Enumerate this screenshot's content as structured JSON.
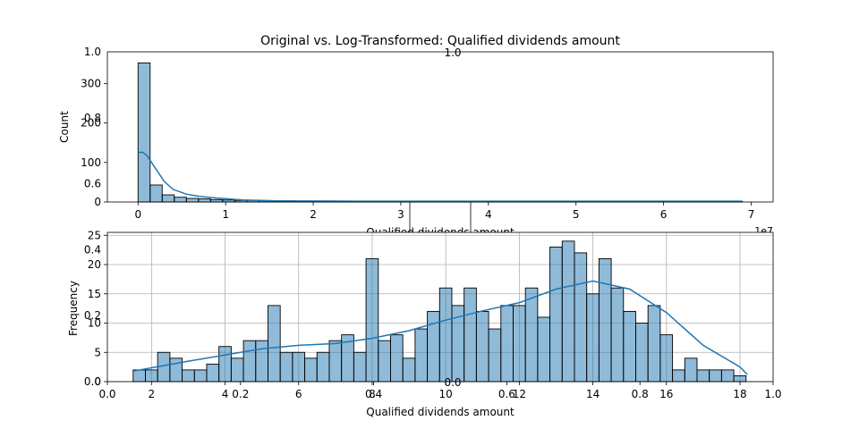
{
  "chart_data": [
    {
      "type": "histogram",
      "title": "Original vs. Log-Transformed: Qualified dividends amount",
      "xlabel": "Qualified dividends amount",
      "ylabel": "Count",
      "x_offset_label": "1e7",
      "xlim": [
        -0.35,
        7.25
      ],
      "ylim": [
        0,
        380
      ],
      "x_ticks": [
        0,
        1,
        2,
        3,
        4,
        5,
        6,
        7
      ],
      "y_ticks": [
        0,
        100,
        200,
        300
      ],
      "bar_color": "#1f77b4",
      "bar_width": 0.138,
      "bar_counts": [
        352,
        43,
        18,
        12,
        9,
        8,
        6,
        5,
        4,
        4,
        3,
        3,
        3,
        2,
        2,
        2,
        2,
        2,
        2,
        1,
        2,
        1,
        1,
        1,
        1,
        2,
        1,
        1,
        1,
        1,
        1,
        1,
        1,
        1,
        1,
        1,
        1,
        1,
        1,
        1,
        1,
        1,
        1,
        1,
        1,
        1,
        1,
        1,
        1,
        1
      ],
      "kde": [
        [
          0.0,
          125
        ],
        [
          0.05,
          126
        ],
        [
          0.1,
          118
        ],
        [
          0.2,
          85
        ],
        [
          0.3,
          52
        ],
        [
          0.4,
          32
        ],
        [
          0.55,
          20
        ],
        [
          0.7,
          14
        ],
        [
          0.9,
          10
        ],
        [
          1.2,
          5
        ],
        [
          1.6,
          3
        ],
        [
          2.5,
          2
        ],
        [
          4.0,
          2
        ],
        [
          6.9,
          2
        ]
      ]
    },
    {
      "type": "histogram",
      "xlabel": "Qualified dividends amount",
      "ylabel": "Frequency",
      "xlim": [
        0.8,
        18.9
      ],
      "ylim": [
        0,
        25.5
      ],
      "x_ticks": [
        2,
        4,
        6,
        8,
        10,
        12,
        14,
        16,
        18
      ],
      "y_ticks": [
        0,
        5,
        10,
        15,
        20,
        25
      ],
      "grid": true,
      "bar_color": "#1f77b4",
      "bin_start": 1.5,
      "bin_width": 0.3333,
      "bar_counts": [
        2,
        2,
        5,
        4,
        2,
        2,
        3,
        6,
        4,
        7,
        7,
        13,
        5,
        5,
        4,
        5,
        7,
        8,
        5,
        21,
        7,
        8,
        4,
        9,
        12,
        16,
        13,
        16,
        12,
        9,
        13,
        13,
        16,
        11,
        23,
        24,
        22,
        15,
        21,
        16,
        12,
        10,
        13,
        8,
        2,
        4,
        2,
        2,
        2,
        1
      ],
      "kde": [
        [
          1.5,
          1.8
        ],
        [
          3,
          3.5
        ],
        [
          5,
          5.6
        ],
        [
          6,
          6.2
        ],
        [
          7,
          6.5
        ],
        [
          8,
          7.4
        ],
        [
          9,
          8.7
        ],
        [
          10,
          10.5
        ],
        [
          11,
          12.1
        ],
        [
          12,
          13.5
        ],
        [
          13,
          15.8
        ],
        [
          14,
          17.2
        ],
        [
          15,
          15.8
        ],
        [
          16,
          11.8
        ],
        [
          17,
          6.2
        ],
        [
          18,
          2.5
        ],
        [
          18.2,
          1.2
        ]
      ]
    }
  ],
  "overlay_axes": {
    "ticks": [
      "0.0",
      "0.2",
      "0.4",
      "0.6",
      "0.8",
      "1.0"
    ]
  }
}
